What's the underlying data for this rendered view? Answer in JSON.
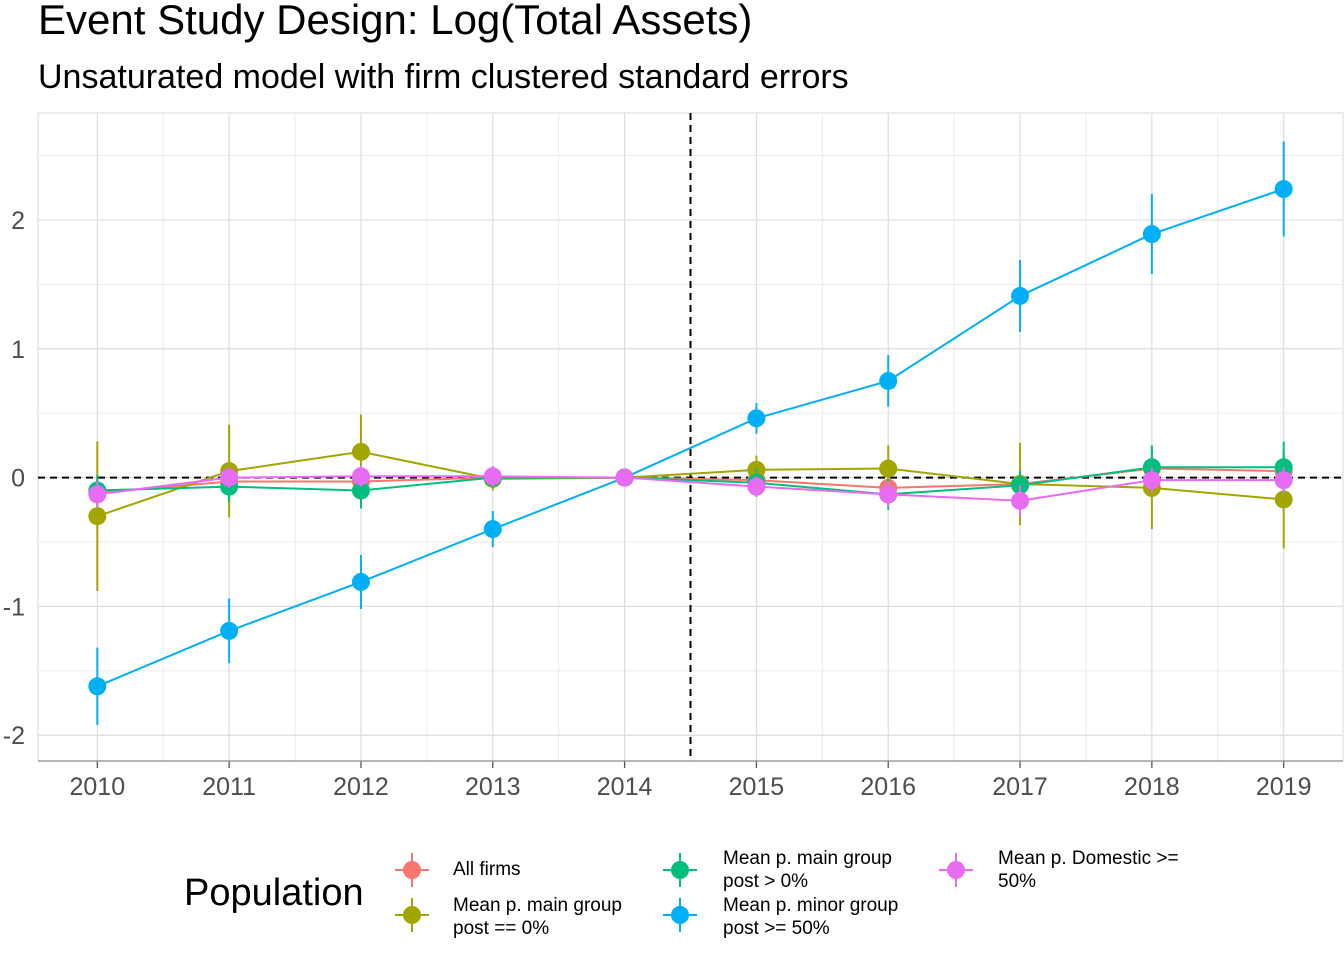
{
  "chart_data": {
    "type": "line",
    "title": "Event Study Design: Log(Total Assets)",
    "subtitle": "Unsaturated model with firm clustered standard errors",
    "x": [
      2010,
      2011,
      2012,
      2013,
      2014,
      2015,
      2016,
      2017,
      2018,
      2019
    ],
    "xlim": [
      2009.55,
      2019.45
    ],
    "ylim": [
      -2.2,
      2.83
    ],
    "y_ticks": [
      -2,
      -1,
      0,
      1,
      2
    ],
    "grid": true,
    "reference_lines": {
      "vertical_x": 2014.5,
      "horizontal_y": 0
    },
    "series": [
      {
        "name": "All firms",
        "color": "#F8766D",
        "values": [
          -0.12,
          -0.03,
          -0.03,
          0.0,
          0.0,
          -0.02,
          -0.08,
          -0.05,
          0.07,
          0.05
        ],
        "lower": [
          -0.24,
          -0.15,
          -0.15,
          -0.08,
          0.0,
          -0.12,
          -0.2,
          -0.17,
          -0.04,
          -0.08
        ],
        "upper": [
          0.0,
          0.09,
          0.09,
          0.08,
          0.0,
          0.08,
          0.04,
          0.07,
          0.18,
          0.18
        ]
      },
      {
        "name": "Mean p. main group\npost == 0%",
        "color": "#A3A500",
        "values": [
          -0.3,
          0.05,
          0.2,
          -0.01,
          0.0,
          0.06,
          0.07,
          -0.05,
          -0.08,
          -0.17
        ],
        "lower": [
          -0.88,
          -0.31,
          -0.09,
          -0.1,
          0.0,
          -0.05,
          -0.11,
          -0.37,
          -0.4,
          -0.55
        ],
        "upper": [
          0.28,
          0.41,
          0.49,
          0.08,
          0.0,
          0.17,
          0.25,
          0.27,
          0.24,
          0.21
        ]
      },
      {
        "name": "Mean p. main group\npost > 0%",
        "color": "#00BF7D",
        "values": [
          -0.1,
          -0.07,
          -0.1,
          0.0,
          0.0,
          -0.04,
          -0.13,
          -0.06,
          0.08,
          0.08
        ],
        "lower": [
          -0.22,
          -0.19,
          -0.24,
          -0.08,
          0.0,
          -0.15,
          -0.25,
          -0.17,
          -0.09,
          -0.12
        ],
        "upper": [
          0.02,
          0.05,
          0.04,
          0.08,
          0.0,
          0.07,
          -0.01,
          0.05,
          0.25,
          0.28
        ]
      },
      {
        "name": "Mean p. minor group\npost >= 50%",
        "color": "#00B0F6",
        "values": [
          -1.62,
          -1.19,
          -0.81,
          -0.4,
          0.0,
          0.46,
          0.75,
          1.41,
          1.89,
          2.24
        ],
        "lower": [
          -1.92,
          -1.44,
          -1.02,
          -0.54,
          0.0,
          0.34,
          0.55,
          1.13,
          1.58,
          1.87
        ],
        "upper": [
          -1.32,
          -0.94,
          -0.6,
          -0.26,
          0.0,
          0.58,
          0.95,
          1.69,
          2.2,
          2.61
        ]
      },
      {
        "name": "Mean p. Domestic >=\n50%",
        "color": "#E76BF3",
        "values": [
          -0.13,
          0.0,
          0.01,
          0.01,
          0.0,
          -0.07,
          -0.13,
          -0.18,
          -0.02,
          -0.02
        ],
        "lower": [
          -0.23,
          -0.08,
          -0.07,
          -0.07,
          0.0,
          -0.15,
          -0.23,
          -0.3,
          -0.12,
          -0.12
        ],
        "upper": [
          -0.03,
          0.08,
          0.09,
          0.09,
          0.0,
          0.01,
          -0.03,
          -0.06,
          0.08,
          0.08
        ]
      }
    ],
    "legend": {
      "title": "Population",
      "placement": "bottom",
      "entries": [
        "All firms",
        "Mean p. main group\npost == 0%",
        "Mean p. main group\npost > 0%",
        "Mean p. minor group\npost >= 50%",
        "Mean p. Domestic >=\n50%"
      ]
    }
  }
}
